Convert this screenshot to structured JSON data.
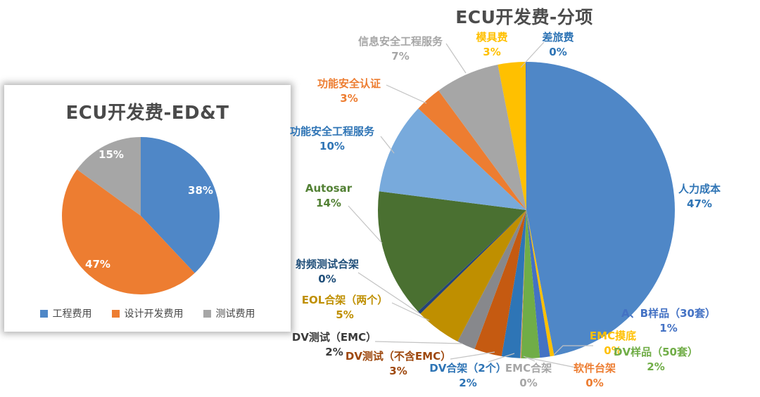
{
  "page": {
    "background": "#ffffff"
  },
  "chart_data": [
    {
      "type": "pie",
      "title": "ECU开发费-ED&T",
      "legend_position": "bottom",
      "start_angle_deg": 0,
      "direction": "clockwise",
      "slices": [
        {
          "label": "工程费用",
          "value": 38,
          "pct_label": "38%",
          "fraction": 38,
          "color": "#4F87C7",
          "pct_text_color": "#FFFFFF"
        },
        {
          "label": "设计开发费用",
          "value": 47,
          "pct_label": "47%",
          "fraction": 47,
          "color": "#ED7D31",
          "pct_text_color": "#FFFFFF"
        },
        {
          "label": "测试费用",
          "value": 15,
          "pct_label": "15%",
          "fraction": 15,
          "color": "#A6A6A6",
          "pct_text_color": "#FFFFFF"
        }
      ]
    },
    {
      "type": "pie",
      "title": "ECU开发费-分项",
      "legend_position": "none",
      "start_angle_deg": 0,
      "direction": "clockwise",
      "slices": [
        {
          "label": "人力成本",
          "value": 47,
          "pct_label": "47%",
          "fraction": 47.0,
          "color": "#4F87C7",
          "label_color": "#2E74B5"
        },
        {
          "label": "EMC摸底",
          "value": 0,
          "pct_label": "0%",
          "fraction": 0.45,
          "color": "#FFC000",
          "label_color": "#FFC000"
        },
        {
          "label": "A、B样品（30套）",
          "value": 1,
          "pct_label": "1%",
          "fraction": 1.1,
          "color": "#4472C4",
          "label_color": "#4472C4"
        },
        {
          "label": "DV样品（50套）",
          "value": 2,
          "pct_label": "2%",
          "fraction": 2.0,
          "color": "#70AD47",
          "label_color": "#70AD47"
        },
        {
          "label": "软件台架",
          "value": 0,
          "pct_label": "0%",
          "fraction": 0.06,
          "color": "#ED7D31",
          "label_color": "#ED7D31"
        },
        {
          "label": "EMC合架",
          "value": 0,
          "pct_label": "0%",
          "fraction": 0.06,
          "color": "#A6A6A6",
          "label_color": "#A6A6A6"
        },
        {
          "label": "DV合架（2个）",
          "value": 2,
          "pct_label": "2%",
          "fraction": 2.0,
          "color": "#2E75B6",
          "label_color": "#2E74B5"
        },
        {
          "label": "DV测试（不含EMC）",
          "value": 3,
          "pct_label": "3%",
          "fraction": 3.0,
          "color": "#C55A11",
          "label_color": "#9E480E"
        },
        {
          "label": "DV测试（EMC）",
          "value": 2,
          "pct_label": "2%",
          "fraction": 2.0,
          "color": "#87888C",
          "label_color": "#3B3B3B"
        },
        {
          "label": "EOL合架（两个）",
          "value": 5,
          "pct_label": "5%",
          "fraction": 5.0,
          "color": "#BF8F00",
          "label_color": "#BF8F00"
        },
        {
          "label": "射频测试合架",
          "value": 0,
          "pct_label": "0%",
          "fraction": 0.35,
          "color": "#264478",
          "label_color": "#1F4E79"
        },
        {
          "label": "Autosar",
          "value": 14,
          "pct_label": "14%",
          "fraction": 14.0,
          "color": "#4A7031",
          "label_color": "#538135"
        },
        {
          "label": "功能安全工程服务",
          "value": 10,
          "pct_label": "10%",
          "fraction": 10.0,
          "color": "#78AADC",
          "label_color": "#2E74B5"
        },
        {
          "label": "功能安全认证",
          "value": 3,
          "pct_label": "3%",
          "fraction": 2.9,
          "color": "#ED7D31",
          "label_color": "#ED7D31"
        },
        {
          "label": "信息安全工程服务",
          "value": 7,
          "pct_label": "7%",
          "fraction": 7.0,
          "color": "#A6A6A6",
          "label_color": "#A6A6A6"
        },
        {
          "label": "模具费",
          "value": 3,
          "pct_label": "3%",
          "fraction": 3.0,
          "color": "#FFC000",
          "label_color": "#FFC000"
        },
        {
          "label": "差旅费",
          "value": 0,
          "pct_label": "0%",
          "fraction": 0.08,
          "color": "#4472C4",
          "label_color": "#2E74B5"
        }
      ]
    }
  ]
}
